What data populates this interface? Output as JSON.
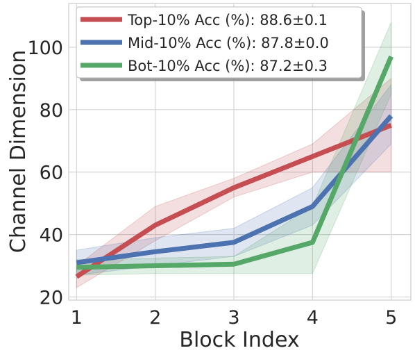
{
  "chart_data": {
    "type": "line",
    "xlabel": "Block Index",
    "ylabel": "Channel Dimension",
    "x": [
      1,
      2,
      3,
      4,
      5
    ],
    "xticks": [
      "1",
      "2",
      "3",
      "4",
      "5"
    ],
    "yticks": [
      "20",
      "40",
      "60",
      "80",
      "100"
    ],
    "xlim": [
      0.9,
      5.25
    ],
    "ylim": [
      19,
      114
    ],
    "grid": true,
    "legend_position": "top-left",
    "series": [
      {
        "name": "Top-10% Acc (%): 88.6±0.1",
        "color": "#c44e52",
        "values": [
          26.5,
          43,
          55,
          65,
          75
        ],
        "band_low": [
          23,
          38,
          52,
          60,
          60
        ],
        "band_high": [
          30,
          49,
          58,
          69,
          90
        ]
      },
      {
        "name": "Mid-10% Acc (%): 87.8±0.0",
        "color": "#4c72b0",
        "values": [
          31,
          34.5,
          37.5,
          49,
          78
        ],
        "band_low": [
          27,
          30,
          33,
          43,
          69
        ],
        "band_high": [
          35,
          39,
          42,
          55,
          88
        ]
      },
      {
        "name": "Bot-10% Acc (%): 87.2±0.3",
        "color": "#55a868",
        "values": [
          29.5,
          30,
          30.5,
          37.5,
          97
        ],
        "band_low": [
          27,
          27.5,
          27.5,
          27.5,
          85
        ],
        "band_high": [
          32,
          32.5,
          33,
          49,
          108
        ]
      }
    ]
  }
}
